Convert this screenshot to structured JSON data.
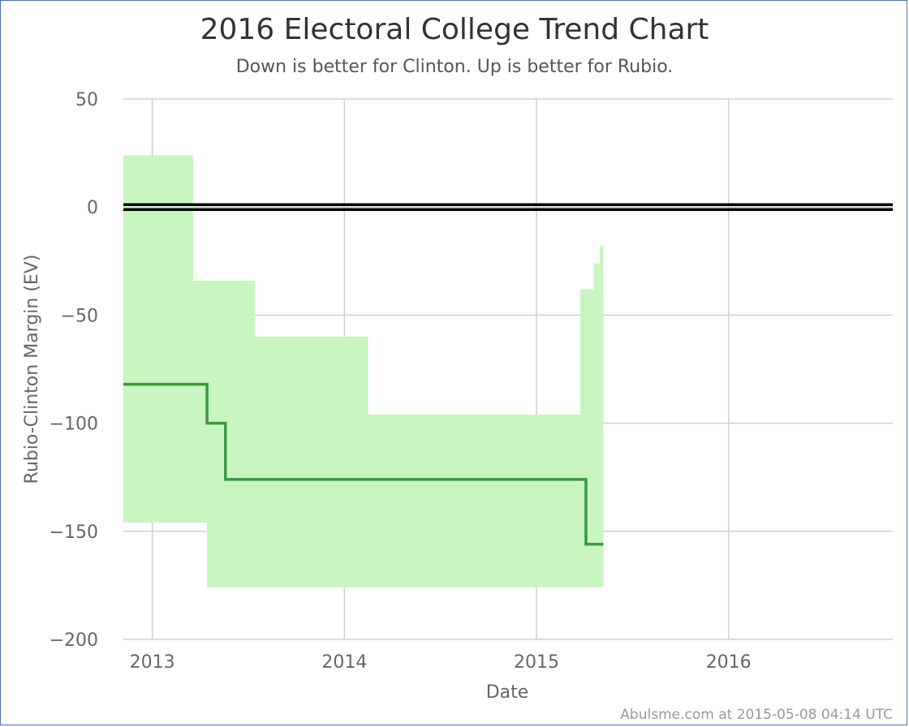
{
  "chart_data": {
    "type": "area",
    "title": "2016 Electoral College Trend Chart",
    "subtitle": "Down is better for Clinton. Up is better for Rubio.",
    "xlabel": "Date",
    "ylabel": "Rubio-Clinton Margin (EV)",
    "ylim": [
      -200,
      50
    ],
    "xlim": [
      "2012-11-07",
      "2016-11-08"
    ],
    "x_ticks": [
      "2013",
      "2014",
      "2015",
      "2016"
    ],
    "y_ticks": [
      50,
      0,
      -50,
      -100,
      -150,
      -200
    ],
    "grid": true,
    "colors": {
      "band": "#c8f5c0",
      "line": "#3a9a3a",
      "zero_line": "#000000",
      "grid": "#d0d0d0"
    },
    "series": [
      {
        "name": "",
        "type": "step-band",
        "points": [
          {
            "x": "2012-11-07",
            "low": -146,
            "high": 24
          },
          {
            "x": "2013-03-20",
            "low": -146,
            "high": -34
          },
          {
            "x": "2013-04-15",
            "low": -176,
            "high": -34
          },
          {
            "x": "2013-07-15",
            "low": -176,
            "high": -60
          },
          {
            "x": "2014-02-15",
            "low": -176,
            "high": -96
          },
          {
            "x": "2015-03-25",
            "low": -176,
            "high": -38
          },
          {
            "x": "2015-04-20",
            "low": -176,
            "high": -26
          },
          {
            "x": "2015-05-01",
            "low": -176,
            "high": -18
          },
          {
            "x": "2015-05-08",
            "low": -176,
            "high": -18
          }
        ]
      },
      {
        "name": "",
        "type": "step-line",
        "points": [
          {
            "x": "2012-11-07",
            "y": -82
          },
          {
            "x": "2013-04-15",
            "y": -100
          },
          {
            "x": "2013-05-20",
            "y": -126
          },
          {
            "x": "2015-04-05",
            "y": -156
          },
          {
            "x": "2015-05-08",
            "y": -156
          }
        ]
      }
    ],
    "reference_line": {
      "y": 0
    }
  },
  "footer": {
    "credit": "Abulsme.com at 2015-05-08 04:14 UTC"
  }
}
